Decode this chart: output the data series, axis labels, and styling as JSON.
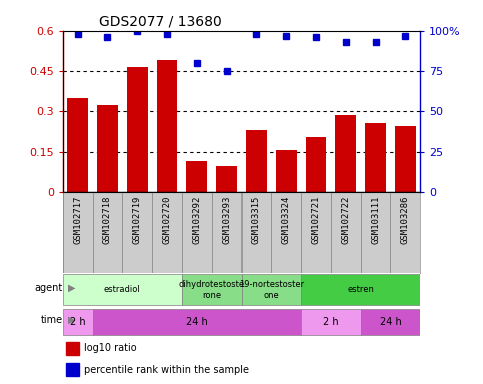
{
  "title": "GDS2077 / 13680",
  "samples": [
    "GSM102717",
    "GSM102718",
    "GSM102719",
    "GSM102720",
    "GSM103292",
    "GSM103293",
    "GSM103315",
    "GSM103324",
    "GSM102721",
    "GSM102722",
    "GSM103111",
    "GSM103286"
  ],
  "log10_ratio": [
    0.35,
    0.325,
    0.465,
    0.49,
    0.115,
    0.095,
    0.23,
    0.155,
    0.205,
    0.285,
    0.255,
    0.245
  ],
  "percentile_rank": [
    98,
    96,
    100,
    98,
    80,
    75,
    98,
    97,
    96,
    93,
    93,
    97
  ],
  "ylim_left": [
    0,
    0.6
  ],
  "ylim_right": [
    0,
    100
  ],
  "yticks_left": [
    0,
    0.15,
    0.3,
    0.45,
    0.6
  ],
  "yticks_right": [
    0,
    25,
    50,
    75,
    100
  ],
  "bar_color": "#cc0000",
  "scatter_color": "#0000cc",
  "agent_labels": [
    {
      "text": "estradiol",
      "start": 0,
      "end": 3,
      "color": "#ccffcc"
    },
    {
      "text": "dihydrotestoste\nrone",
      "start": 4,
      "end": 5,
      "color": "#88dd88"
    },
    {
      "text": "19-nortestoster\none",
      "start": 6,
      "end": 7,
      "color": "#88dd88"
    },
    {
      "text": "estren",
      "start": 8,
      "end": 11,
      "color": "#44cc44"
    }
  ],
  "time_labels": [
    {
      "text": "2 h",
      "start": 0,
      "end": 0,
      "color": "#ee99ee"
    },
    {
      "text": "24 h",
      "start": 1,
      "end": 7,
      "color": "#cc55cc"
    },
    {
      "text": "2 h",
      "start": 8,
      "end": 9,
      "color": "#ee99ee"
    },
    {
      "text": "24 h",
      "start": 10,
      "end": 11,
      "color": "#cc55cc"
    }
  ],
  "legend_items": [
    {
      "color": "#cc0000",
      "label": "log10 ratio"
    },
    {
      "color": "#0000cc",
      "label": "percentile rank within the sample"
    }
  ],
  "sample_box_color": "#cccccc",
  "sample_box_border": "#888888"
}
